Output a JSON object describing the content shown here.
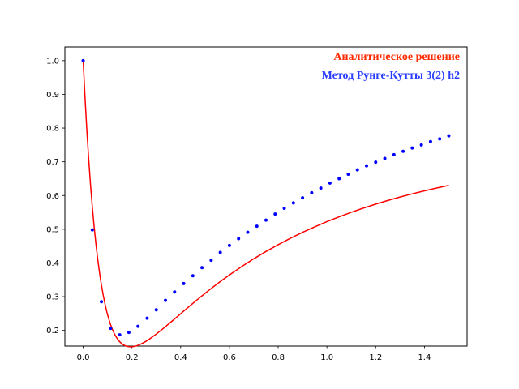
{
  "chart_data": {
    "type": "line",
    "title": "",
    "xlabel": "",
    "ylabel": "",
    "xlim": [
      -0.075,
      1.575
    ],
    "ylim": [
      0.1535,
      1.0405
    ],
    "xticks": [
      0.0,
      0.2,
      0.4,
      0.6,
      0.8,
      1.0,
      1.2,
      1.4
    ],
    "xtick_labels": [
      "0.0",
      "0.2",
      "0.4",
      "0.6",
      "0.8",
      "1.0",
      "1.2",
      "1.4"
    ],
    "yticks": [
      0.2,
      0.3,
      0.4,
      0.5,
      0.6,
      0.7,
      0.8,
      0.9,
      1.0
    ],
    "ytick_labels": [
      "0.2",
      "0.3",
      "0.4",
      "0.5",
      "0.6",
      "0.7",
      "0.8",
      "0.9",
      "1.0"
    ],
    "grid": false,
    "legend_position": "top-right",
    "series": [
      {
        "name": "Аналитическое решение",
        "style": "line",
        "color": "#ff0000",
        "x": [
          0.0,
          0.0075,
          0.015,
          0.0225,
          0.03,
          0.0375,
          0.045,
          0.0525,
          0.06,
          0.0675,
          0.075,
          0.0825,
          0.09,
          0.0975,
          0.105,
          0.1125,
          0.12,
          0.1275,
          0.135,
          0.1425,
          0.15,
          0.1575,
          0.165,
          0.1725,
          0.18,
          0.1875,
          0.195,
          0.2025,
          0.21,
          0.2175,
          0.225,
          0.24,
          0.255,
          0.27,
          0.3,
          0.33,
          0.36,
          0.39,
          0.42,
          0.45,
          0.48,
          0.51,
          0.54,
          0.57,
          0.6,
          0.65,
          0.7,
          0.75,
          0.8,
          0.85,
          0.9,
          0.95,
          1.0,
          1.05,
          1.1,
          1.15,
          1.2,
          1.25,
          1.3,
          1.35,
          1.4,
          1.45,
          1.5
        ],
        "y": [
          1.0,
          0.8914,
          0.7949,
          0.7093,
          0.6335,
          0.5665,
          0.5073,
          0.4552,
          0.4094,
          0.3692,
          0.334,
          0.3034,
          0.2768,
          0.2537,
          0.2339,
          0.2171,
          0.2028,
          0.1908,
          0.1809,
          0.1728,
          0.1662,
          0.1611,
          0.1572,
          0.1544,
          0.1526,
          0.1516,
          0.1513,
          0.1517,
          0.1526,
          0.154,
          0.1558,
          0.1605,
          0.1665,
          0.1734,
          0.1891,
          0.2065,
          0.2247,
          0.2433,
          0.2619,
          0.2802,
          0.2982,
          0.3156,
          0.3325,
          0.3488,
          0.3645,
          0.3892,
          0.4124,
          0.434,
          0.4542,
          0.4731,
          0.4907,
          0.5071,
          0.5225,
          0.5368,
          0.5502,
          0.5627,
          0.5744,
          0.5853,
          0.5955,
          0.605,
          0.6139,
          0.6223,
          0.6301
        ]
      },
      {
        "name": "Метод Рунге-Кутты 3(2) h2",
        "style": "markers",
        "color": "#0000ff",
        "x": [
          0.0,
          0.0375,
          0.075,
          0.1125,
          0.15,
          0.1875,
          0.225,
          0.2625,
          0.3,
          0.3375,
          0.375,
          0.4125,
          0.45,
          0.4875,
          0.525,
          0.5625,
          0.6,
          0.6375,
          0.675,
          0.7125,
          0.75,
          0.7875,
          0.825,
          0.8625,
          0.9,
          0.9375,
          0.975,
          1.0125,
          1.05,
          1.0875,
          1.125,
          1.1625,
          1.2,
          1.2375,
          1.275,
          1.3125,
          1.35,
          1.3875,
          1.425,
          1.4625,
          1.5
        ],
        "y": [
          1.0,
          0.498,
          0.285,
          0.206,
          0.187,
          0.194,
          0.212,
          0.236,
          0.261,
          0.289,
          0.314,
          0.339,
          0.362,
          0.386,
          0.408,
          0.431,
          0.452,
          0.472,
          0.491,
          0.509,
          0.527,
          0.545,
          0.562,
          0.578,
          0.593,
          0.608,
          0.622,
          0.637,
          0.65,
          0.663,
          0.676,
          0.688,
          0.699,
          0.71,
          0.721,
          0.731,
          0.741,
          0.75,
          0.76,
          0.768,
          0.777
        ]
      }
    ]
  }
}
